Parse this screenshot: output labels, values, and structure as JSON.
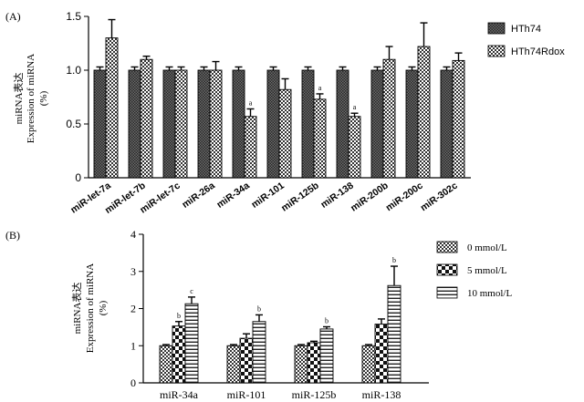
{
  "colors": {
    "axis": "#000000",
    "dark_fill": "#555555",
    "light_fill": "#ffffff",
    "bar_stroke": "#000000"
  },
  "chart_data": [
    {
      "type": "bar",
      "panel_label": "(A)",
      "ylabel_cn": "miRNA表达",
      "ylabel_en": "Expression of miRNA",
      "ylabel_unit": "(%)",
      "ylim": [
        0,
        1.5
      ],
      "yticks": [
        0,
        0.5,
        1.0,
        1.5
      ],
      "ytick_labels": [
        "0",
        "0.5",
        "1.0",
        "1.5"
      ],
      "categories": [
        "miR-let-7a",
        "miR-let-7b",
        "miR-let-7c",
        "miR-26a",
        "miR-34a",
        "miR-101",
        "miR-125b",
        "miR-138",
        "miR-200b",
        "miR-200c",
        "miR-302c"
      ],
      "series": [
        {
          "name": "HTh74",
          "pattern": "dark",
          "values": [
            1.0,
            1.0,
            1.0,
            1.0,
            1.0,
            1.0,
            1.0,
            1.0,
            1.0,
            1.0,
            1.0
          ],
          "errors": [
            0.03,
            0.03,
            0.03,
            0.03,
            0.03,
            0.03,
            0.03,
            0.03,
            0.03,
            0.03,
            0.03
          ]
        },
        {
          "name": "HTh74Rdox",
          "pattern": "check",
          "values": [
            1.3,
            1.1,
            1.0,
            1.0,
            0.57,
            0.82,
            0.73,
            0.57,
            1.1,
            1.22,
            1.09
          ],
          "errors": [
            0.17,
            0.03,
            0.03,
            0.08,
            0.07,
            0.1,
            0.05,
            0.03,
            0.12,
            0.22,
            0.07
          ]
        }
      ],
      "annotations": [
        {
          "category": "miR-34a",
          "series": "HTh74Rdox",
          "text": "a"
        },
        {
          "category": "miR-125b",
          "series": "HTh74Rdox",
          "text": "a"
        },
        {
          "category": "miR-138",
          "series": "HTh74Rdox",
          "text": "a"
        }
      ],
      "legend_placement": "top-right",
      "grid": false
    },
    {
      "type": "bar",
      "panel_label": "(B)",
      "ylabel_cn": "miRNA表达",
      "ylabel_en": "Expression of miRNA",
      "ylabel_unit": "(%)",
      "ylim": [
        0,
        4
      ],
      "yticks": [
        0,
        1,
        2,
        3,
        4
      ],
      "ytick_labels": [
        "0",
        "1",
        "2",
        "3",
        "4"
      ],
      "categories": [
        "miR-34a",
        "miR-101",
        "miR-125b",
        "miR-138"
      ],
      "series": [
        {
          "name": "0 mmol/L",
          "pattern": "check",
          "values": [
            1.0,
            1.0,
            1.0,
            1.0
          ],
          "errors": [
            0.03,
            0.03,
            0.03,
            0.03
          ]
        },
        {
          "name": "5 mmol/L",
          "pattern": "bigcheck",
          "values": [
            1.53,
            1.2,
            1.08,
            1.58
          ],
          "errors": [
            0.12,
            0.12,
            0.04,
            0.14
          ]
        },
        {
          "name": "10 mmol/L",
          "pattern": "stripe",
          "values": [
            2.13,
            1.65,
            1.45,
            2.62
          ],
          "errors": [
            0.18,
            0.18,
            0.06,
            0.52
          ]
        }
      ],
      "annotations": [
        {
          "category": "miR-34a",
          "series": "5 mmol/L",
          "text": "b"
        },
        {
          "category": "miR-34a",
          "series": "10 mmol/L",
          "text": "c"
        },
        {
          "category": "miR-101",
          "series": "10 mmol/L",
          "text": "b"
        },
        {
          "category": "miR-125b",
          "series": "10 mmol/L",
          "text": "b"
        },
        {
          "category": "miR-138",
          "series": "10 mmol/L",
          "text": "b"
        }
      ],
      "legend_placement": "top-right",
      "grid": false
    }
  ]
}
